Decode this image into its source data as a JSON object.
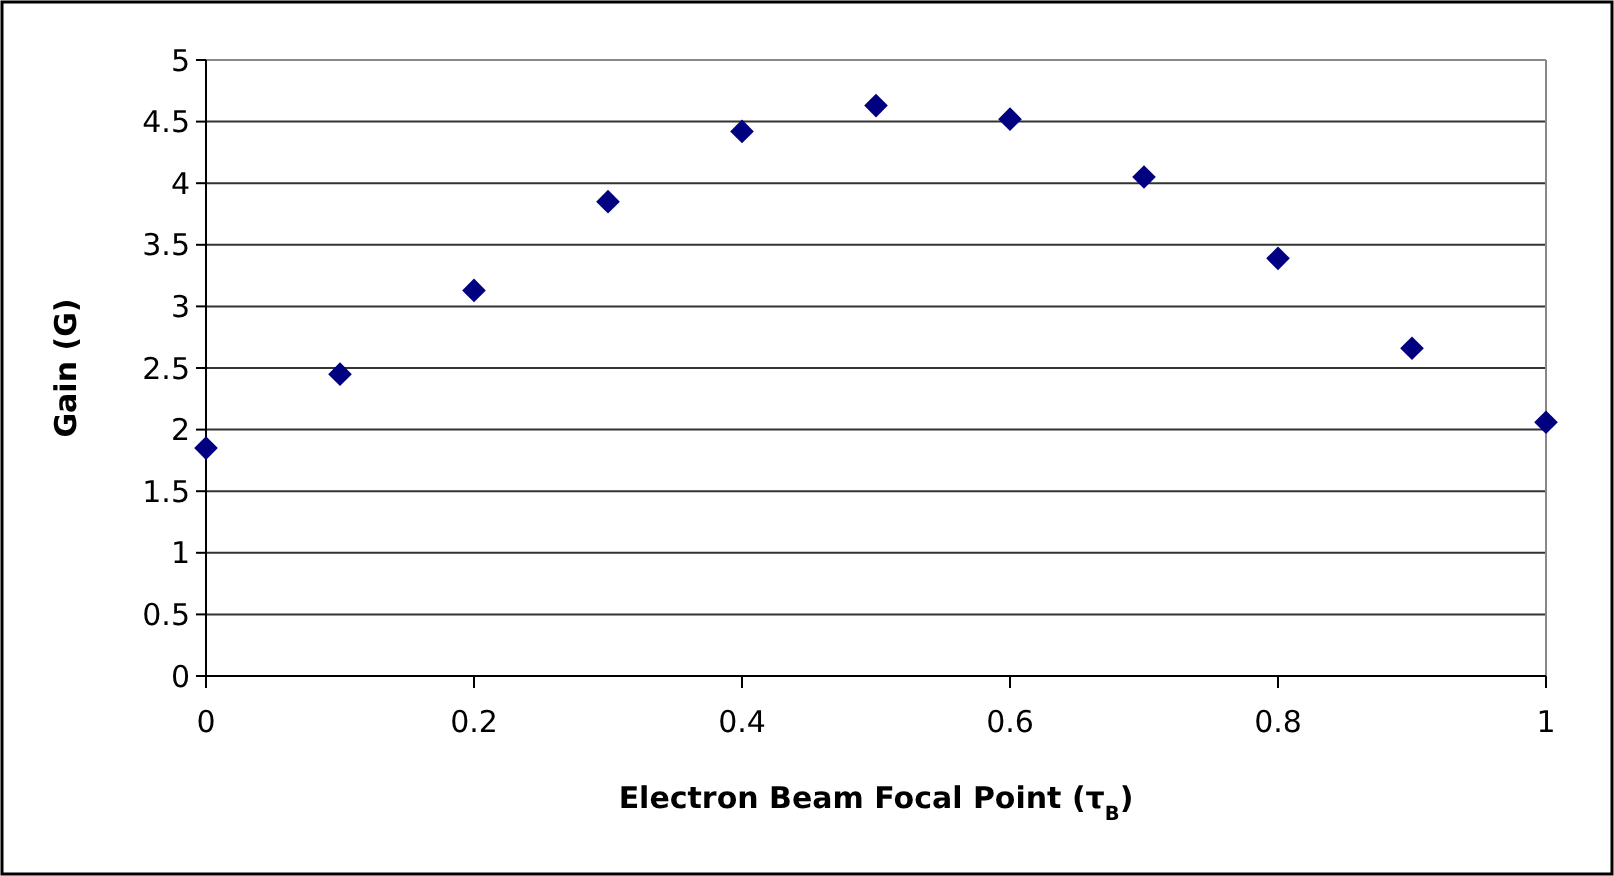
{
  "chart_data": {
    "type": "scatter",
    "xlabel": "Electron Beam Focal Point (τ$_{B}$)",
    "ylabel": "Gain (G)",
    "x": [
      0,
      0.1,
      0.2,
      0.3,
      0.4,
      0.5,
      0.6,
      0.7,
      0.8,
      0.9,
      1
    ],
    "series": [
      {
        "color": "#000080",
        "values": [
          1.85,
          2.45,
          3.13,
          3.85,
          4.42,
          4.63,
          4.52,
          4.05,
          3.39,
          2.66,
          2.06
        ]
      }
    ],
    "xlim": [
      0,
      1
    ],
    "xticks": [
      0,
      0.2,
      0.4,
      0.6,
      0.8,
      1
    ],
    "ylim": [
      0,
      5
    ],
    "yticks": [
      0,
      0.5,
      1,
      1.5,
      2,
      2.5,
      3,
      3.5,
      4,
      4.5,
      5
    ],
    "grid": "y",
    "marker": "diamond"
  }
}
